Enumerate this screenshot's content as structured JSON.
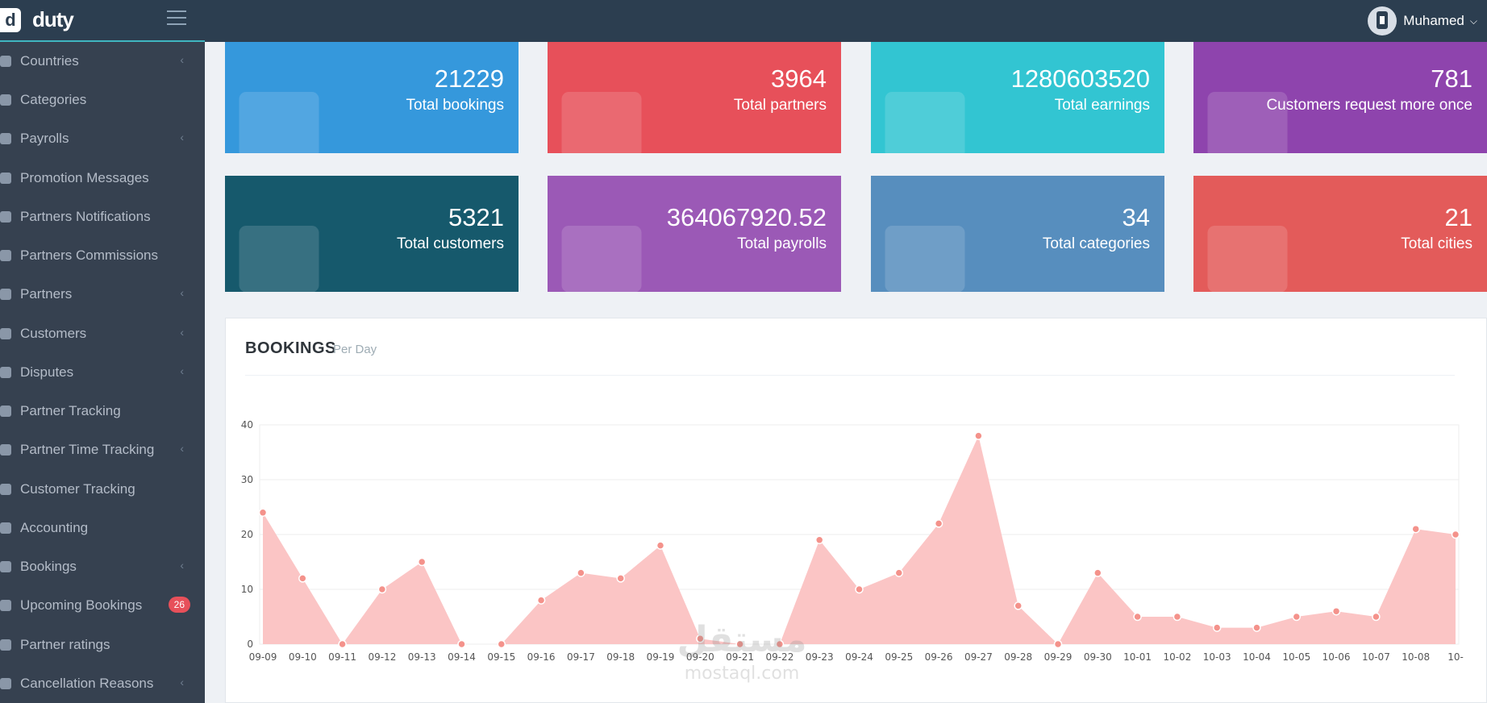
{
  "header": {
    "logo_mark": "d",
    "logo_text": "duty",
    "user_name": "Muhamed"
  },
  "sidebar": {
    "items": [
      {
        "label": "Countries",
        "chevron": true
      },
      {
        "label": "Categories",
        "chevron": false
      },
      {
        "label": "Payrolls",
        "chevron": true
      },
      {
        "label": "Promotion Messages",
        "chevron": false
      },
      {
        "label": "Partners Notifications",
        "chevron": false
      },
      {
        "label": "Partners Commissions",
        "chevron": false
      },
      {
        "label": "Partners",
        "chevron": true
      },
      {
        "label": "Customers",
        "chevron": true
      },
      {
        "label": "Disputes",
        "chevron": true
      },
      {
        "label": "Partner Tracking",
        "chevron": false
      },
      {
        "label": "Partner Time Tracking",
        "chevron": true
      },
      {
        "label": "Customer Tracking",
        "chevron": false
      },
      {
        "label": "Accounting",
        "chevron": false
      },
      {
        "label": "Bookings",
        "chevron": true
      },
      {
        "label": "Upcoming Bookings",
        "chevron": false,
        "badge": "26"
      },
      {
        "label": "Partner ratings",
        "chevron": false
      },
      {
        "label": "Cancellation Reasons",
        "chevron": true
      }
    ]
  },
  "cards": [
    {
      "value": "21229",
      "label": "Total bookings",
      "color": "#3598dc",
      "icon": "briefcase-icon"
    },
    {
      "value": "3964",
      "label": "Total partners",
      "color": "#e7505a",
      "icon": "users-icon"
    },
    {
      "value": "1280603520",
      "label": "Total earnings",
      "color": "#32c5d2",
      "icon": "trend-up-icon"
    },
    {
      "value": "781",
      "label": "Customers request more once",
      "color": "#8e44ad",
      "icon": "question-icon"
    },
    {
      "value": "5321",
      "label": "Total customers",
      "color": "#16596c",
      "icon": "person-icon"
    },
    {
      "value": "364067920.52",
      "label": "Total payrolls",
      "color": "#9b59b6",
      "icon": "credit-card-icon"
    },
    {
      "value": "34",
      "label": "Total categories",
      "color": "#578ebe",
      "icon": "puzzle-icon"
    },
    {
      "value": "21",
      "label": "Total cities",
      "color": "#e35b5a",
      "icon": "globe-icon"
    }
  ],
  "bookings_panel": {
    "title": "BOOKINGS",
    "subtitle": "Per Day"
  },
  "chart_data": {
    "type": "area",
    "categories": [
      "09-09",
      "09-10",
      "09-11",
      "09-12",
      "09-13",
      "09-14",
      "09-15",
      "09-16",
      "09-17",
      "09-18",
      "09-19",
      "09-20",
      "09-21",
      "09-22",
      "09-23",
      "09-24",
      "09-25",
      "09-26",
      "09-27",
      "09-28",
      "09-29",
      "09-30",
      "10-01",
      "10-02",
      "10-03",
      "10-04",
      "10-05",
      "10-06",
      "10-07",
      "10-08",
      "10-"
    ],
    "values": [
      24,
      12,
      0,
      10,
      15,
      0,
      0,
      8,
      13,
      12,
      18,
      1,
      0,
      0,
      19,
      10,
      13,
      22,
      38,
      7,
      0,
      13,
      5,
      5,
      3,
      3,
      5,
      6,
      5,
      21,
      20
    ],
    "ylim": [
      0,
      40
    ],
    "yticks": [
      0,
      10,
      20,
      30,
      40
    ],
    "grid": true,
    "fill_color": "#fbc5c5",
    "point_color": "#f4928b"
  }
}
